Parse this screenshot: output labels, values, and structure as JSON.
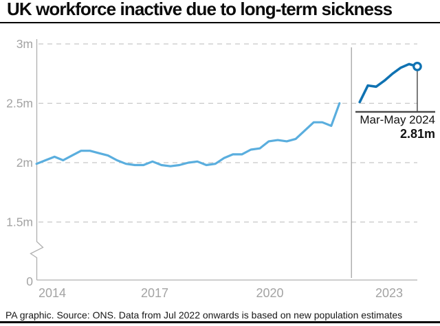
{
  "header": {
    "title": "UK workforce inactive due to long-term sickness"
  },
  "footer": {
    "credit": "PA graphic. Source: ONS. Data from Jul 2022 onwards is based on new population estimates"
  },
  "chart_data": {
    "type": "line",
    "title": "UK workforce inactive due to long-term sickness",
    "unit": "millions of people",
    "xlabel": "",
    "ylabel": "",
    "x_tick_labels": [
      "2014",
      "2017",
      "2020",
      "2023"
    ],
    "y_tick_labels": [
      "3m",
      "2.5m",
      "2m",
      "1.5m",
      "0"
    ],
    "y_gridline_values": [
      3,
      2.5,
      2,
      1.5
    ],
    "ylim_shown": [
      1.5,
      3.0
    ],
    "y_axis_break": true,
    "grid": "horizontal-dashed",
    "legend": "none",
    "divider_x": 2022.0,
    "series": [
      {
        "name": "inactive-long-term-sick-original-estimates",
        "color": "#5aaede",
        "points": [
          [
            2013.58,
            1.99
          ],
          [
            2013.82,
            2.02
          ],
          [
            2014.06,
            2.05
          ],
          [
            2014.29,
            2.02
          ],
          [
            2014.53,
            2.06
          ],
          [
            2014.77,
            2.1
          ],
          [
            2015.01,
            2.1
          ],
          [
            2015.25,
            2.08
          ],
          [
            2015.49,
            2.06
          ],
          [
            2015.73,
            2.02
          ],
          [
            2015.97,
            1.99
          ],
          [
            2016.21,
            1.98
          ],
          [
            2016.44,
            1.98
          ],
          [
            2016.68,
            2.01
          ],
          [
            2016.92,
            1.98
          ],
          [
            2017.16,
            1.97
          ],
          [
            2017.4,
            1.98
          ],
          [
            2017.64,
            2.0
          ],
          [
            2017.88,
            2.01
          ],
          [
            2018.12,
            1.98
          ],
          [
            2018.36,
            1.99
          ],
          [
            2018.6,
            2.04
          ],
          [
            2018.83,
            2.07
          ],
          [
            2019.07,
            2.07
          ],
          [
            2019.31,
            2.11
          ],
          [
            2019.55,
            2.12
          ],
          [
            2019.79,
            2.18
          ],
          [
            2020.03,
            2.19
          ],
          [
            2020.27,
            2.18
          ],
          [
            2020.51,
            2.2
          ],
          [
            2020.75,
            2.27
          ],
          [
            2020.99,
            2.34
          ],
          [
            2021.22,
            2.34
          ],
          [
            2021.46,
            2.31
          ],
          [
            2021.68,
            2.5
          ]
        ]
      },
      {
        "name": "inactive-long-term-sick-new-population-estimates",
        "color": "#0f72b2",
        "points": [
          [
            2022.22,
            2.51
          ],
          [
            2022.44,
            2.65
          ],
          [
            2022.66,
            2.64
          ],
          [
            2022.88,
            2.69
          ],
          [
            2023.1,
            2.75
          ],
          [
            2023.32,
            2.8
          ],
          [
            2023.54,
            2.83
          ],
          [
            2023.76,
            2.81
          ]
        ]
      }
    ],
    "end_marker": {
      "x": 2023.76,
      "v": 2.81
    },
    "annotation": {
      "label": "Mar-May 2024",
      "value": "2.81m"
    }
  },
  "colors": {
    "light_blue": "#5aaede",
    "dark_blue": "#0f72b2",
    "grid": "#c7c7c7",
    "axis": "#b0b0b0",
    "separator": "#9c9c9c",
    "tick_label": "#a3a3a3",
    "annotation_bar": "#4a4a4a",
    "text": "#111111"
  }
}
